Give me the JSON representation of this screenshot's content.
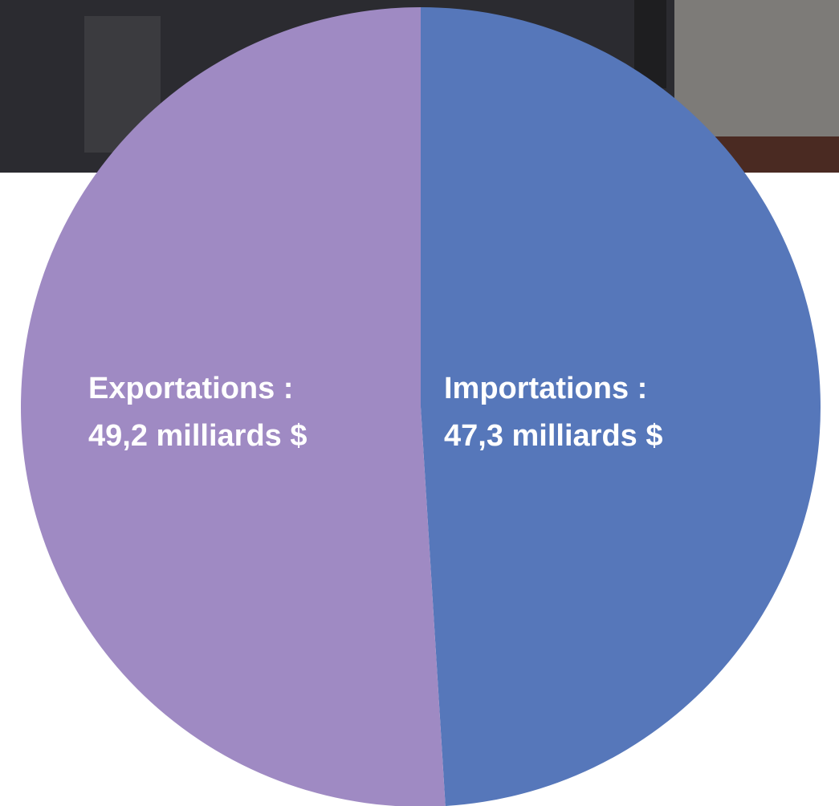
{
  "chart_data": {
    "type": "pie",
    "categories": [
      "Importations :",
      "Exportations :"
    ],
    "values": [
      47.3,
      49.2
    ],
    "value_labels": [
      "47,3 milliards $",
      "49,2 milliards $"
    ],
    "colors": [
      "#5677ba",
      "#9f8ac3"
    ]
  }
}
